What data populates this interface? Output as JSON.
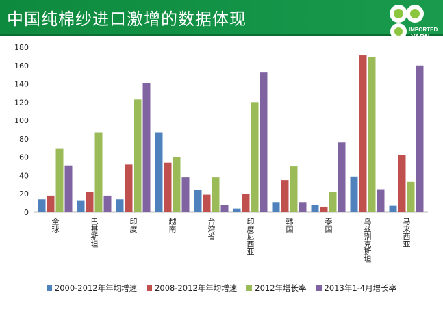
{
  "header": {
    "title": "中国纯棉纱进口激增的数据体现",
    "logo_text": "IMPORTED YARN"
  },
  "chart_data": {
    "type": "bar",
    "title": "",
    "xlabel": "",
    "ylabel": "",
    "ylim": [
      0,
      180
    ],
    "yticks": [
      0,
      20,
      40,
      60,
      80,
      100,
      120,
      140,
      160,
      180
    ],
    "categories": [
      "全球",
      "巴基斯坦",
      "印度",
      "越南",
      "台湾省",
      "印度尼西亚",
      "韩国",
      "泰国",
      "乌兹别克斯坦",
      "马来西亚"
    ],
    "series": [
      {
        "name": "2000-2012年年均增速",
        "color": "#4f81bd",
        "values": [
          14,
          13,
          14,
          87,
          24,
          4,
          11,
          8,
          39,
          7
        ]
      },
      {
        "name": "2008-2012年年均增速",
        "color": "#c0504d",
        "values": [
          18,
          22,
          52,
          54,
          19,
          20,
          35,
          6,
          171,
          62
        ]
      },
      {
        "name": "2012年增长率",
        "color": "#9bbb59",
        "values": [
          69,
          87,
          123,
          60,
          38,
          120,
          50,
          22,
          169,
          33
        ]
      },
      {
        "name": "2013年1-4月增长率",
        "color": "#8064a2",
        "values": [
          51,
          18,
          141,
          38,
          8,
          153,
          11,
          76,
          25,
          160
        ]
      }
    ],
    "grid": false,
    "legend_position": "bottom"
  }
}
